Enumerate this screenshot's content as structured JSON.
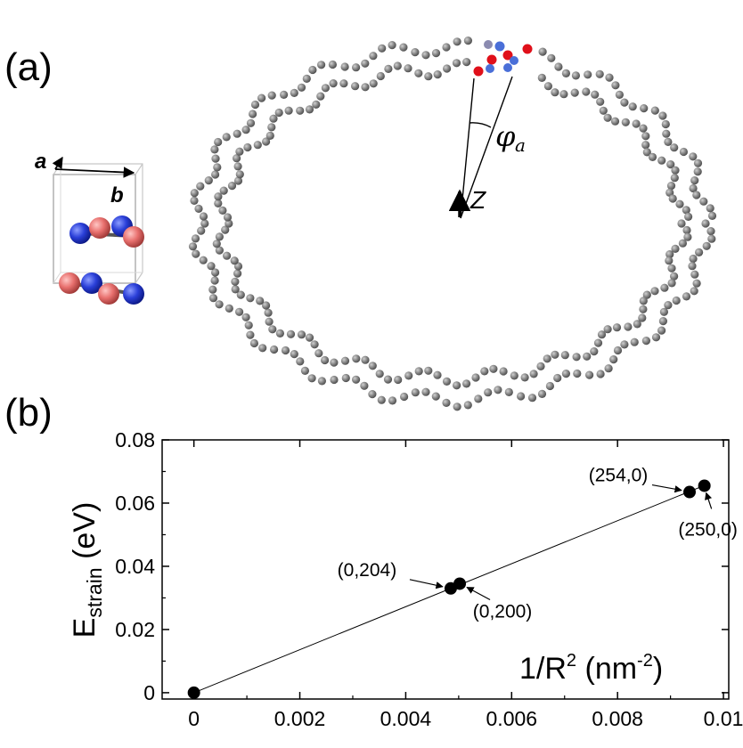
{
  "panels": {
    "a_label": "(a)",
    "b_label": "(b)"
  },
  "structure": {
    "axis_a": "a",
    "axis_b": "b",
    "angle_symbol": "φ",
    "angle_subscript": "a",
    "direction_label": "Z",
    "colors": {
      "atom_red": "#e8706e",
      "atom_blue": "#2a3fd8",
      "tube_atom": "#7d7d7d",
      "marker_red": "#e0101a",
      "marker_blue": "#4a6fd8"
    }
  },
  "chart_data": {
    "type": "scatter",
    "x": [
      0,
      0.00485,
      0.00502,
      0.00936,
      0.00964
    ],
    "y": [
      0,
      0.033,
      0.0345,
      0.0635,
      0.0655
    ],
    "fit_line": {
      "x": [
        0,
        0.0097
      ],
      "y": [
        0,
        0.066
      ]
    },
    "point_labels": [
      "",
      "(0,204)",
      "(0,200)",
      "(254,0)",
      "(250,0)"
    ],
    "xlabel": "1/R2 (nm-2)",
    "xlabel_parts": {
      "main": "1/R",
      "sup": "2",
      "unit_open": " (nm",
      "unit_sup": "-2",
      "unit_close": ")"
    },
    "ylabel": "Estrain (eV)",
    "ylabel_parts": {
      "main": "E",
      "sub": "strain",
      "unit": " (eV)"
    },
    "xlim": [
      -0.0006,
      0.0101
    ],
    "ylim": [
      -0.002,
      0.08
    ],
    "xticks": [
      0,
      0.002,
      0.004,
      0.006,
      0.008,
      0.01
    ],
    "xtick_labels": [
      "0",
      "0.002",
      "0.004",
      "0.006",
      "0.008",
      "0.01"
    ],
    "yticks": [
      0,
      0.02,
      0.04,
      0.06,
      0.08
    ],
    "ytick_labels": [
      "0",
      "0.02",
      "0.04",
      "0.06",
      "0.08"
    ],
    "grid": false,
    "legend": "none",
    "colors": {
      "marker": "#000000",
      "line": "#000000"
    }
  }
}
